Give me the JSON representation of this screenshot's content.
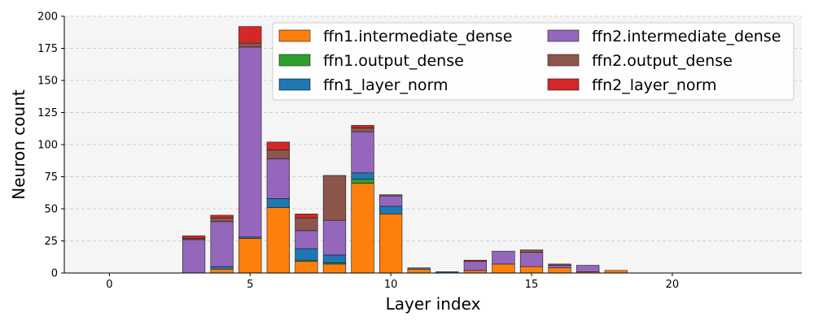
{
  "chart_data": {
    "type": "bar",
    "stacked": true,
    "title": "",
    "xlabel": "Layer index",
    "ylabel": "Neuron count",
    "xlim": [
      -1.6,
      24.6
    ],
    "ylim": [
      0,
      200
    ],
    "xticks": [
      0,
      5,
      10,
      15,
      20
    ],
    "yticks": [
      0,
      25,
      50,
      75,
      100,
      125,
      150,
      175,
      200
    ],
    "grid": "y-dashed",
    "legend_position": "top-right",
    "legend_columns": 2,
    "x": [
      0,
      1,
      2,
      3,
      4,
      5,
      6,
      7,
      8,
      9,
      10,
      11,
      12,
      13,
      14,
      15,
      16,
      17,
      18,
      19,
      20,
      21,
      22,
      23
    ],
    "series": [
      {
        "name": "ffn1.intermediate_dense",
        "color": "#ff7f0e",
        "values": [
          0,
          0,
          0,
          0,
          3,
          27,
          51,
          9,
          7,
          70,
          46,
          3,
          0,
          2,
          7,
          5,
          4,
          1,
          2,
          0,
          0,
          0,
          0,
          0
        ]
      },
      {
        "name": "ffn1.output_dense",
        "color": "#2ca02c",
        "values": [
          0,
          0,
          0,
          0,
          0,
          0,
          0,
          1,
          1,
          3,
          0,
          0,
          0,
          0,
          0,
          0,
          0,
          0,
          0,
          0,
          0,
          0,
          0,
          0
        ]
      },
      {
        "name": "ffn1_layer_norm",
        "color": "#1f77b4",
        "values": [
          0,
          0,
          0,
          0,
          2,
          1,
          7,
          9,
          6,
          5,
          6,
          1,
          1,
          0,
          0,
          0,
          0,
          0,
          0,
          0,
          0,
          0,
          0,
          0
        ]
      },
      {
        "name": "ffn2.intermediate_dense",
        "color": "#9467bd",
        "values": [
          0,
          0,
          0,
          26,
          35,
          148,
          31,
          14,
          27,
          32,
          8,
          0,
          0,
          7,
          10,
          11,
          2,
          5,
          0,
          0,
          0,
          0,
          0,
          0
        ]
      },
      {
        "name": "ffn2.output_dense",
        "color": "#8c564b",
        "values": [
          0,
          0,
          0,
          1,
          3,
          3,
          7,
          10,
          35,
          3,
          1,
          0,
          0,
          0,
          0,
          2,
          1,
          0,
          0,
          0,
          0,
          0,
          0,
          0
        ]
      },
      {
        "name": "ffn2_layer_norm",
        "color": "#d62728",
        "values": [
          0,
          0,
          0,
          2,
          2,
          13,
          6,
          3,
          0,
          2,
          0,
          0,
          0,
          1,
          0,
          0,
          0,
          0,
          0,
          0,
          0,
          0,
          0,
          0
        ]
      }
    ]
  }
}
